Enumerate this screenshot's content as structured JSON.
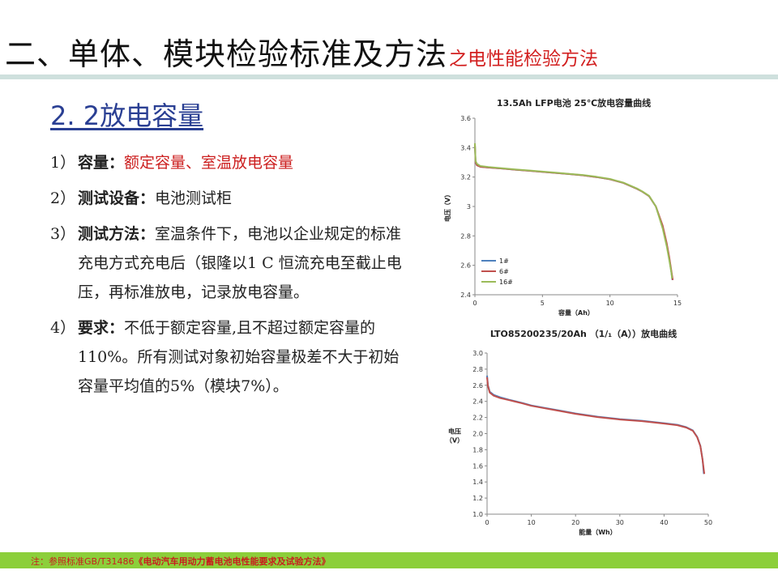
{
  "header": {
    "title": "二、单体、模块检验标准及方法",
    "subtitle": "之电性能检验方法"
  },
  "section": {
    "heading": "2. 2放电容量"
  },
  "items": [
    {
      "num": "1）",
      "label": "容量：",
      "text": "额定容量、室温放电容量"
    },
    {
      "num": "2）",
      "label": "测试设备：",
      "text": "电池测试柜"
    },
    {
      "num": "3）",
      "label": "测试方法：",
      "text": "室温条件下，电池以企业规定的标准充电方式充电后（银隆以1 C 恒流充电至截止电压，再标准放电，记录放电容量。"
    },
    {
      "num": "4）",
      "label": "要求：",
      "text": "不低于额定容量,且不超过额定容量的110%。所有测试对象初始容量极差不大于初始容量平均值的5%（模块7%）。"
    }
  ],
  "footer": {
    "note": "注：参照标准GB/T31486",
    "book": "《电动汽车用动力蓄电池电性能要求及试验方法》"
  },
  "chart_data": [
    {
      "type": "line",
      "title": "13.5Ah LFP电池 25℃放电容量曲线",
      "xlabel": "容量（Ah）",
      "ylabel": "电压（V）",
      "xlim": [
        0,
        15
      ],
      "ylim": [
        2.4,
        3.6
      ],
      "xticks": [
        0,
        5,
        10,
        15
      ],
      "yticks": [
        2.4,
        2.6,
        2.8,
        3,
        3.2,
        3.4,
        3.6
      ],
      "legend_position": "bottom-left",
      "series": [
        {
          "name": "1#",
          "color": "#4f81bd",
          "x": [
            0,
            0.05,
            0.15,
            0.4,
            1,
            2,
            3,
            4,
            5,
            6,
            7,
            8,
            9,
            10,
            11,
            12,
            12.4,
            12.9,
            13.4,
            13.9,
            14.2,
            14.4,
            14.55,
            14.62
          ],
          "y": [
            3.42,
            3.3,
            3.28,
            3.27,
            3.265,
            3.258,
            3.25,
            3.243,
            3.235,
            3.228,
            3.22,
            3.212,
            3.2,
            3.185,
            3.16,
            3.12,
            3.1,
            3.07,
            3.0,
            2.86,
            2.74,
            2.64,
            2.55,
            2.5
          ]
        },
        {
          "name": "6#",
          "color": "#c0504d",
          "x": [
            0,
            0.05,
            0.15,
            0.4,
            1,
            2,
            3,
            4,
            5,
            6,
            7,
            8,
            9,
            10,
            11,
            12,
            12.4,
            12.9,
            13.4,
            13.9,
            14.2,
            14.4,
            14.55,
            14.65
          ],
          "y": [
            3.42,
            3.3,
            3.28,
            3.27,
            3.265,
            3.258,
            3.25,
            3.243,
            3.235,
            3.228,
            3.22,
            3.212,
            3.2,
            3.185,
            3.16,
            3.12,
            3.1,
            3.07,
            3.0,
            2.87,
            2.75,
            2.65,
            2.56,
            2.5
          ]
        },
        {
          "name": "16#",
          "color": "#9bbb59",
          "x": [
            0,
            0.05,
            0.15,
            0.4,
            1,
            2,
            3,
            4,
            5,
            6,
            7,
            8,
            9,
            10,
            11,
            12,
            12.4,
            12.9,
            13.4,
            13.9,
            14.2,
            14.4,
            14.55,
            14.6
          ],
          "y": [
            3.43,
            3.31,
            3.29,
            3.275,
            3.268,
            3.26,
            3.252,
            3.245,
            3.237,
            3.23,
            3.222,
            3.214,
            3.202,
            3.187,
            3.162,
            3.122,
            3.102,
            3.072,
            3.0,
            2.85,
            2.73,
            2.63,
            2.55,
            2.51
          ]
        }
      ]
    },
    {
      "type": "line",
      "title": "LTO85200235/20Ah （1/₁（A））放电曲线",
      "xlabel": "能量（Wh）",
      "ylabel": "电压（V）",
      "xlim": [
        0,
        50
      ],
      "ylim": [
        1.0,
        3.0
      ],
      "xticks": [
        0,
        10,
        20,
        30,
        40,
        50
      ],
      "yticks": [
        1.0,
        1.2,
        1.4,
        1.6,
        1.8,
        2.0,
        2.2,
        2.4,
        2.6,
        2.8,
        3.0
      ],
      "series": [
        {
          "color": "#4f81bd",
          "x": [
            0,
            0.2,
            0.6,
            1.5,
            3,
            5,
            8,
            10,
            13,
            16,
            20,
            25,
            30,
            35,
            40,
            43,
            45,
            46.5,
            47.5,
            48.2,
            48.7,
            49
          ],
          "y": [
            2.72,
            2.6,
            2.52,
            2.48,
            2.45,
            2.42,
            2.38,
            2.35,
            2.32,
            2.29,
            2.25,
            2.21,
            2.18,
            2.16,
            2.13,
            2.11,
            2.08,
            2.04,
            1.96,
            1.85,
            1.68,
            1.5
          ]
        },
        {
          "color": "#c0504d",
          "x": [
            0,
            0.2,
            0.6,
            1.5,
            3,
            5,
            8,
            10,
            13,
            16,
            20,
            25,
            30,
            35,
            40,
            43,
            45,
            46.5,
            47.5,
            48.2,
            48.7,
            49.1
          ],
          "y": [
            2.7,
            2.59,
            2.51,
            2.47,
            2.44,
            2.415,
            2.375,
            2.345,
            2.315,
            2.285,
            2.245,
            2.205,
            2.175,
            2.155,
            2.125,
            2.105,
            2.075,
            2.035,
            1.955,
            1.845,
            1.675,
            1.5
          ]
        }
      ]
    }
  ]
}
